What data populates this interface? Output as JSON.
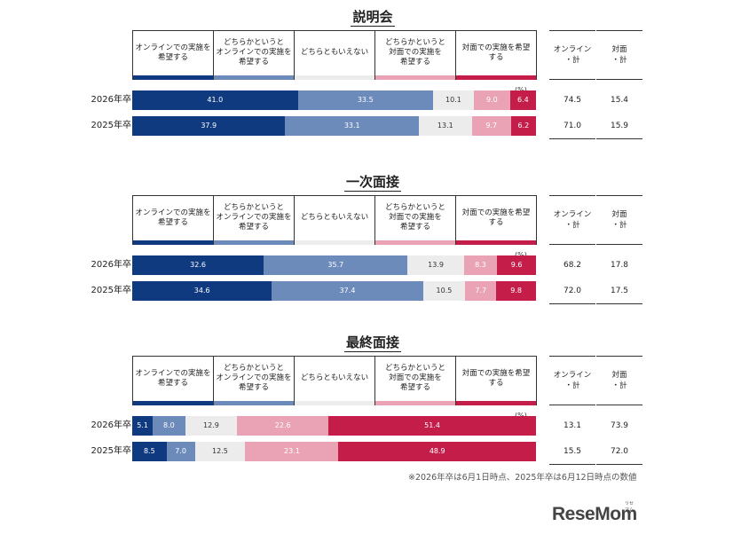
{
  "colors": {
    "online": "#0f3a80",
    "online_lean": "#6c8bbb",
    "neutral": "#ececec",
    "face_lean": "#eaa3b4",
    "face": "#c41d4a"
  },
  "legend": [
    "オンラインでの実施を\n希望する",
    "どちらかというと\nオンラインでの実施を\n希望する",
    "どちらともいえない",
    "どちらかというと\n対面での実施を\n希望する",
    "対面での実施を希望\nする"
  ],
  "sum_headers": {
    "online": "オンライン\n・計",
    "face": "対面\n・計"
  },
  "unit": "(%)",
  "footnote": "※2026年卒は6月1日時点、2025年卒は6月12日時点の数値",
  "logo": "ReseMom",
  "logo_small": "リセマム",
  "chart_data": [
    {
      "type": "bar",
      "title": "説明会",
      "categories": [
        "2026年卒",
        "2025年卒"
      ],
      "series": [
        {
          "name": "オンラインでの実施を希望する",
          "values": [
            41.0,
            37.9
          ]
        },
        {
          "name": "どちらかというとオンラインでの実施を希望する",
          "values": [
            33.5,
            33.1
          ]
        },
        {
          "name": "どちらともいえない",
          "values": [
            10.1,
            13.1
          ]
        },
        {
          "name": "どちらかというと対面での実施を希望する",
          "values": [
            9.0,
            9.7
          ]
        },
        {
          "name": "対面での実施を希望する",
          "values": [
            6.4,
            6.2
          ]
        }
      ],
      "labels": [
        [
          "41.0",
          "33.5",
          "10.1",
          "9.0",
          "6.4"
        ],
        [
          "37.9",
          "33.1",
          "13.1",
          "9.7",
          "6.2"
        ]
      ],
      "online_total": [
        "74.5",
        "71.0"
      ],
      "face_total": [
        "15.4",
        "15.9"
      ]
    },
    {
      "type": "bar",
      "title": "一次面接",
      "categories": [
        "2026年卒",
        "2025年卒"
      ],
      "series": [
        {
          "name": "オンラインでの実施を希望する",
          "values": [
            32.6,
            34.6
          ]
        },
        {
          "name": "どちらかというとオンラインでの実施を希望する",
          "values": [
            35.7,
            37.4
          ]
        },
        {
          "name": "どちらともいえない",
          "values": [
            13.9,
            10.5
          ]
        },
        {
          "name": "どちらかというと対面での実施を希望する",
          "values": [
            8.3,
            7.7
          ]
        },
        {
          "name": "対面での実施を希望する",
          "values": [
            9.6,
            9.8
          ]
        }
      ],
      "labels": [
        [
          "32.6",
          "35.7",
          "13.9",
          "8.3",
          "9.6"
        ],
        [
          "34.6",
          "37.4",
          "10.5",
          "7.7",
          "9.8"
        ]
      ],
      "online_total": [
        "68.2",
        "72.0"
      ],
      "face_total": [
        "17.8",
        "17.5"
      ]
    },
    {
      "type": "bar",
      "title": "最終面接",
      "categories": [
        "2026年卒",
        "2025年卒"
      ],
      "series": [
        {
          "name": "オンラインでの実施を希望する",
          "values": [
            5.1,
            8.5
          ]
        },
        {
          "name": "どちらかというとオンラインでの実施を希望する",
          "values": [
            8.0,
            7.0
          ]
        },
        {
          "name": "どちらともいえない",
          "values": [
            12.9,
            12.5
          ]
        },
        {
          "name": "どちらかというと対面での実施を希望する",
          "values": [
            22.6,
            23.1
          ]
        },
        {
          "name": "対面での実施を希望する",
          "values": [
            51.4,
            48.9
          ]
        }
      ],
      "labels": [
        [
          "5.1",
          "8.0",
          "12.9",
          "22.6",
          "51.4"
        ],
        [
          "8.5",
          "7.0",
          "12.5",
          "23.1",
          "48.9"
        ]
      ],
      "online_total": [
        "13.1",
        "15.5"
      ],
      "face_total": [
        "73.9",
        "72.0"
      ]
    }
  ]
}
